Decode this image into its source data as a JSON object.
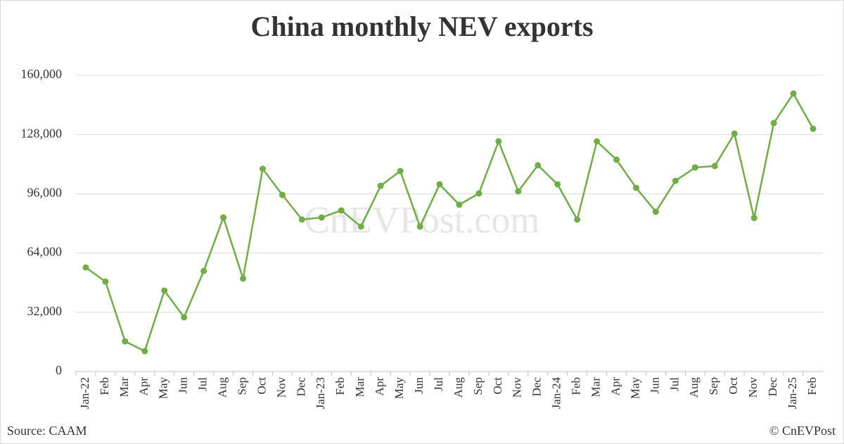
{
  "chart_data": {
    "type": "line",
    "title": "China monthly NEV exports",
    "watermark": "CnEVPost.com",
    "source": "Source: CAAM",
    "credit": "© CnEVPost",
    "categories": [
      "Jan-22",
      "Feb",
      "Mar",
      "Apr",
      "May",
      "Jun",
      "Jul",
      "Aug",
      "Sep",
      "Oct",
      "Nov",
      "Dec",
      "Jan-23",
      "Feb",
      "Mar",
      "Apr",
      "May",
      "Jun",
      "Jul",
      "Aug",
      "Sep",
      "Oct",
      "Nov",
      "Dec",
      "Jan-24",
      "Feb",
      "Mar",
      "Apr",
      "May",
      "Jun",
      "Jul",
      "Aug",
      "Sep",
      "Oct",
      "Nov",
      "Dec",
      "Jan-25",
      "Feb"
    ],
    "series": [
      {
        "name": "NEV exports",
        "color": "#70ad47",
        "values": [
          56200,
          48600,
          16300,
          11000,
          43700,
          29300,
          54300,
          83200,
          50200,
          109500,
          95400,
          82100,
          83200,
          87000,
          78300,
          100300,
          108300,
          78300,
          101100,
          90100,
          96200,
          124300,
          97300,
          111400,
          101100,
          82100,
          124300,
          114400,
          99200,
          86300,
          103000,
          110200,
          111000,
          128500,
          82900,
          134200,
          150100,
          131100
        ]
      }
    ],
    "ylim": [
      0,
      160000
    ],
    "yticks": [
      0,
      {
        "value": 32000,
        "label": "32,000"
      },
      {
        "value": 64000,
        "label": "64,000"
      },
      {
        "value": 96000,
        "label": "96,000"
      },
      {
        "value": 128000,
        "label": "128,000"
      },
      {
        "value": 160000,
        "label": "160,000"
      }
    ],
    "grid": true
  }
}
